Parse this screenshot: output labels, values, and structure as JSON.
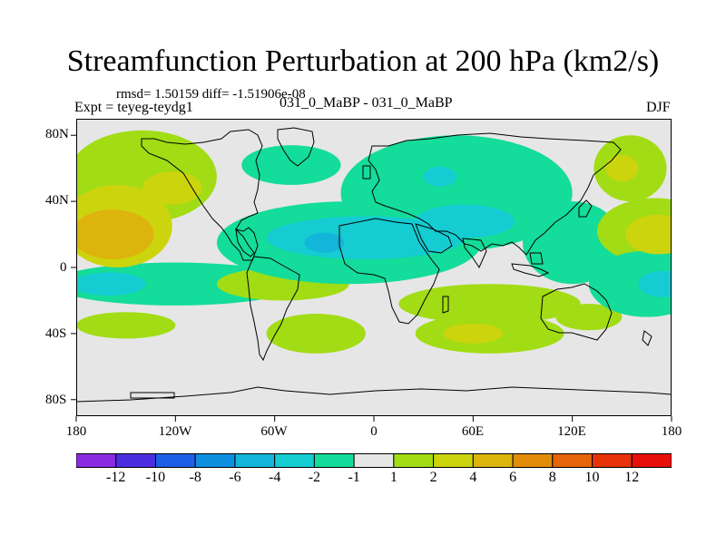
{
  "title": "Streamfunction Perturbation at 200 hPa (km2/s)",
  "stats_line": "rmsd= 1.50159 diff= -1.51906e-08",
  "experiment_label": "Expt = teyeg-teydg1",
  "case_label": "031_0_MaBP - 031_0_MaBP",
  "season_label": "DJF",
  "chart_data": {
    "type": "heatmap",
    "title": "Streamfunction Perturbation at 200 hPa (km2/s)",
    "projection": "cylindrical equidistant",
    "lon_range": [
      -180,
      180
    ],
    "lat_range": [
      -90,
      90
    ],
    "x_ticks": [
      {
        "value": -180,
        "label": "180"
      },
      {
        "value": -120,
        "label": "120W"
      },
      {
        "value": -60,
        "label": "60W"
      },
      {
        "value": 0,
        "label": "0"
      },
      {
        "value": 60,
        "label": "60E"
      },
      {
        "value": 120,
        "label": "120E"
      },
      {
        "value": 180,
        "label": "180"
      }
    ],
    "y_ticks": [
      {
        "value": 80,
        "label": "80N"
      },
      {
        "value": 40,
        "label": "40N"
      },
      {
        "value": 0,
        "label": "0"
      },
      {
        "value": -40,
        "label": "40S"
      },
      {
        "value": -80,
        "label": "80S"
      }
    ],
    "colorbar": {
      "bins": [
        {
          "color": "#8a2be2",
          "range": "< -12"
        },
        {
          "color": "#4b2ee0",
          "range": "-12 to -10"
        },
        {
          "color": "#1e5fe6",
          "range": "-10 to -8"
        },
        {
          "color": "#0f8fdf",
          "range": "-8 to -6"
        },
        {
          "color": "#13b5d8",
          "range": "-6 to -4"
        },
        {
          "color": "#14ccd2",
          "range": "-4 to -2"
        },
        {
          "color": "#14dc9a",
          "range": "-2 to -1"
        },
        {
          "color": "#e6e6e6",
          "range": "-1 to 1"
        },
        {
          "color": "#a2dc14",
          "range": "1 to 2"
        },
        {
          "color": "#ccd40e",
          "range": "2 to 4"
        },
        {
          "color": "#dcb40c",
          "range": "4 to 6"
        },
        {
          "color": "#e28c0a",
          "range": "6 to 8"
        },
        {
          "color": "#e6640a",
          "range": "8 to 10"
        },
        {
          "color": "#e8320a",
          "range": "10 to 12"
        },
        {
          "color": "#e8100a",
          "range": "> 12"
        }
      ],
      "tick_labels": [
        "-12",
        "-10",
        "-8",
        "-6",
        "-4",
        "-2",
        "-1",
        "1",
        "2",
        "4",
        "6",
        "8",
        "10",
        "12"
      ]
    },
    "features": [
      {
        "level": 2,
        "lon": -155,
        "lat": 25,
        "rx": 33,
        "ry": 25
      },
      {
        "level": 3,
        "lon": -158,
        "lat": 20,
        "rx": 25,
        "ry": 15
      },
      {
        "level": 1,
        "lon": -140,
        "lat": 55,
        "rx": 45,
        "ry": 28
      },
      {
        "level": 2,
        "lon": -122,
        "lat": 48,
        "rx": 18,
        "ry": 10
      },
      {
        "level": -1,
        "lon": -120,
        "lat": -10,
        "rx": 75,
        "ry": 13
      },
      {
        "level": -2,
        "lon": -160,
        "lat": -10,
        "rx": 22,
        "ry": 7
      },
      {
        "level": 1,
        "lon": -55,
        "lat": -10,
        "rx": 40,
        "ry": 10
      },
      {
        "level": 1,
        "lon": -35,
        "lat": -40,
        "rx": 30,
        "ry": 12
      },
      {
        "level": 1,
        "lon": -150,
        "lat": -35,
        "rx": 30,
        "ry": 8
      },
      {
        "level": -1,
        "lon": -50,
        "lat": 62,
        "rx": 30,
        "ry": 12
      },
      {
        "level": -1,
        "lon": -15,
        "lat": 15,
        "rx": 80,
        "ry": 25
      },
      {
        "level": -2,
        "lon": -5,
        "lat": 18,
        "rx": 60,
        "ry": 13
      },
      {
        "level": -3,
        "lon": -30,
        "lat": 15,
        "rx": 12,
        "ry": 6
      },
      {
        "level": -1,
        "lon": 50,
        "lat": 45,
        "rx": 70,
        "ry": 35
      },
      {
        "level": -2,
        "lon": 40,
        "lat": 55,
        "rx": 10,
        "ry": 6
      },
      {
        "level": -2,
        "lon": 55,
        "lat": 28,
        "rx": 30,
        "ry": 10
      },
      {
        "level": -1,
        "lon": 120,
        "lat": 15,
        "rx": 30,
        "ry": 25
      },
      {
        "level": 1,
        "lon": 70,
        "lat": -22,
        "rx": 55,
        "ry": 12
      },
      {
        "level": 1,
        "lon": 70,
        "lat": -40,
        "rx": 45,
        "ry": 12
      },
      {
        "level": 2,
        "lon": 60,
        "lat": -40,
        "rx": 18,
        "ry": 6
      },
      {
        "level": 1,
        "lon": 130,
        "lat": -30,
        "rx": 20,
        "ry": 8
      },
      {
        "level": 1,
        "lon": 155,
        "lat": 60,
        "rx": 22,
        "ry": 20
      },
      {
        "level": 2,
        "lon": 150,
        "lat": 60,
        "rx": 10,
        "ry": 8
      },
      {
        "level": 1,
        "lon": 170,
        "lat": 22,
        "rx": 35,
        "ry": 20
      },
      {
        "level": 2,
        "lon": 172,
        "lat": 20,
        "rx": 20,
        "ry": 12
      },
      {
        "level": -1,
        "lon": 165,
        "lat": -10,
        "rx": 35,
        "ry": 20
      },
      {
        "level": -2,
        "lon": 175,
        "lat": -10,
        "rx": 15,
        "ry": 8
      }
    ]
  }
}
